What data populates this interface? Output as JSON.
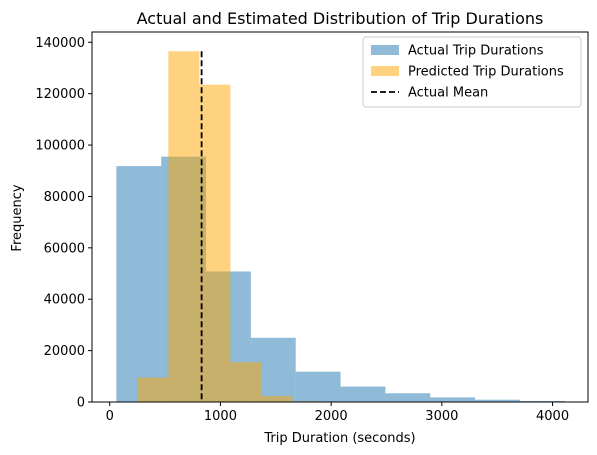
{
  "chart_data": {
    "type": "bar",
    "title": "Actual and Estimated Distribution of Trip Durations",
    "xlabel": "Trip Duration (seconds)",
    "ylabel": "Frequency",
    "xlim": [
      -160,
      4320
    ],
    "ylim": [
      0,
      144000
    ],
    "xticks": [
      0,
      1000,
      2000,
      3000,
      4000
    ],
    "yticks": [
      0,
      20000,
      40000,
      60000,
      80000,
      100000,
      120000,
      140000
    ],
    "legend_position": "top-right",
    "grid": false,
    "series": [
      {
        "name": "Actual Trip Durations",
        "color": "#1f77b4",
        "opacity": 0.5,
        "bin_edges": [
          60,
          465,
          870,
          1275,
          1680,
          2085,
          2490,
          2895,
          3300,
          3705,
          4110
        ],
        "values": [
          91800,
          95500,
          50800,
          25000,
          11800,
          6000,
          3400,
          1800,
          900,
          400
        ]
      },
      {
        "name": "Predicted Trip Durations",
        "color": "#ffa500",
        "opacity": 0.5,
        "bin_edges": [
          250,
          530,
          810,
          1090,
          1370,
          1650,
          1930,
          2210,
          2490,
          2770,
          3050
        ],
        "values": [
          9500,
          136500,
          123500,
          15500,
          2300,
          300,
          80,
          20,
          5,
          2
        ]
      }
    ],
    "reference_lines": [
      {
        "name": "Actual Mean",
        "value": 830,
        "color": "#000000",
        "style": "dashed"
      }
    ]
  }
}
